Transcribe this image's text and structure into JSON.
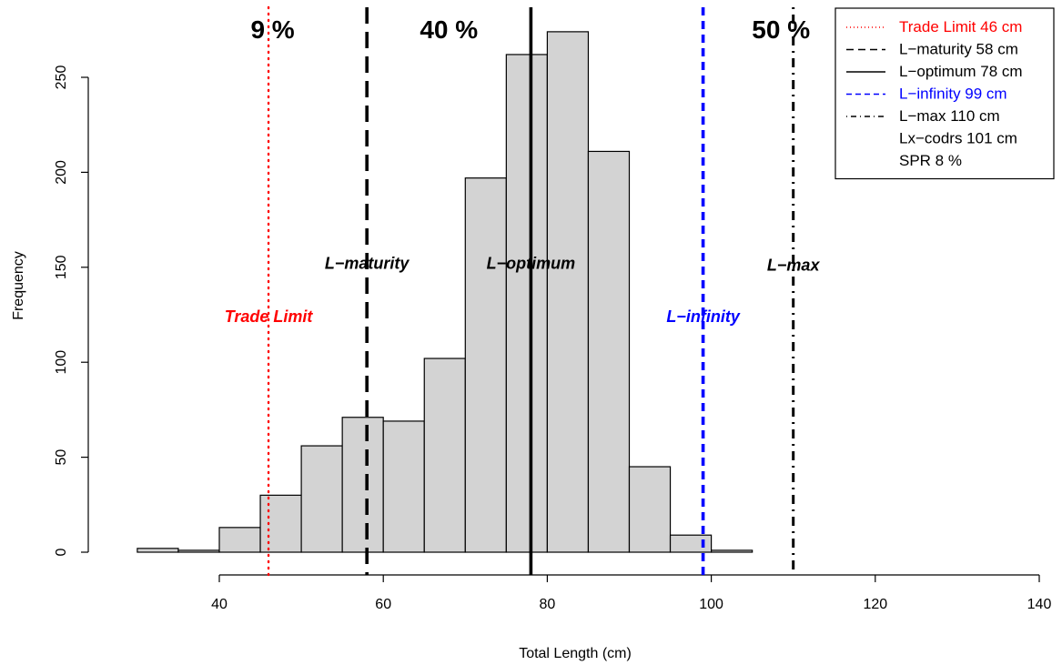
{
  "chart_data": {
    "type": "bar",
    "xlabel": "Total Length (cm)",
    "ylabel": "Frequency",
    "xlim": [
      22,
      140
    ],
    "ylim": [
      0,
      275
    ],
    "x_ticks": [
      40,
      60,
      80,
      100,
      120,
      140
    ],
    "y_ticks": [
      0,
      50,
      100,
      150,
      200,
      250
    ],
    "bins": [
      {
        "start": 30,
        "end": 35,
        "count": 2
      },
      {
        "start": 35,
        "end": 40,
        "count": 1
      },
      {
        "start": 40,
        "end": 45,
        "count": 13
      },
      {
        "start": 45,
        "end": 50,
        "count": 30
      },
      {
        "start": 50,
        "end": 55,
        "count": 56
      },
      {
        "start": 55,
        "end": 60,
        "count": 71
      },
      {
        "start": 60,
        "end": 65,
        "count": 69
      },
      {
        "start": 65,
        "end": 70,
        "count": 102
      },
      {
        "start": 70,
        "end": 75,
        "count": 197
      },
      {
        "start": 75,
        "end": 80,
        "count": 262
      },
      {
        "start": 80,
        "end": 85,
        "count": 274
      },
      {
        "start": 85,
        "end": 90,
        "count": 211
      },
      {
        "start": 90,
        "end": 95,
        "count": 45
      },
      {
        "start": 95,
        "end": 100,
        "count": 9
      },
      {
        "start": 100,
        "end": 105,
        "count": 1
      }
    ],
    "bar_fill": "#d3d3d3",
    "reference_lines": [
      {
        "key": "trade-limit",
        "value": 46,
        "label": "Trade Limit",
        "color": "#ff0000",
        "style": "dotted",
        "label_y": 124
      },
      {
        "key": "l-maturity",
        "value": 58,
        "label": "L−maturity",
        "color": "#000000",
        "style": "dashed",
        "label_y": 152
      },
      {
        "key": "l-optimum",
        "value": 78,
        "label": "L−optimum",
        "color": "#000000",
        "style": "solid",
        "label_y": 152
      },
      {
        "key": "l-infinity",
        "value": 99,
        "label": "L−infinity",
        "color": "#0000ff",
        "style": "dashed-short",
        "label_y": 124
      },
      {
        "key": "l-max",
        "value": 110,
        "label": "L−max",
        "color": "#000000",
        "style": "dotdash",
        "label_y": 151
      }
    ],
    "percent_labels": [
      {
        "text": "9 %",
        "x": 46.5
      },
      {
        "text": "40 %",
        "x": 68
      },
      {
        "text": "50 %",
        "x": 108.5
      }
    ],
    "legend": {
      "position": "top-right",
      "entries": [
        {
          "text": "Trade Limit 46 cm",
          "color": "#ff0000",
          "style": "dotted"
        },
        {
          "text": "L−maturity 58 cm",
          "color": "#000000",
          "style": "dashed"
        },
        {
          "text": "L−optimum 78 cm",
          "color": "#000000",
          "style": "solid"
        },
        {
          "text": "L−infinity 99 cm",
          "color": "#0000ff",
          "style": "dashed-short"
        },
        {
          "text": "L−max 110 cm",
          "color": "#000000",
          "style": "dotdash"
        },
        {
          "text": "Lx−codrs 101 cm",
          "color": "#000000",
          "style": "none"
        },
        {
          "text": "SPR 8 %",
          "color": "#000000",
          "style": "none"
        }
      ]
    }
  }
}
